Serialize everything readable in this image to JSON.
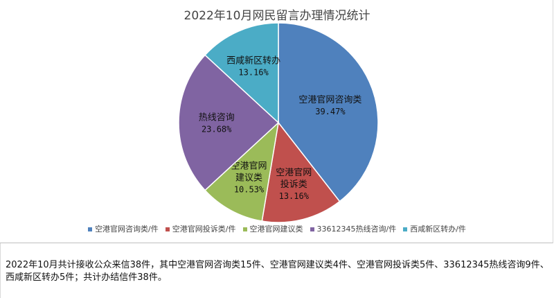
{
  "chart_data": {
    "type": "pie",
    "title": "2022年10月网民留言办理情况统计",
    "slices": [
      {
        "legend": "空港官网咨询类/件",
        "label_lines": [
          "空港官网咨询类"
        ],
        "percent_label": "39.47%",
        "value": 15,
        "color": "#4f81bd"
      },
      {
        "legend": "空港官网投诉类/件",
        "label_lines": [
          "空港官网",
          "投诉类"
        ],
        "percent_label": "13.16%",
        "value": 5,
        "color": "#c0504d"
      },
      {
        "legend": "空港官网建议类",
        "label_lines": [
          "空港官网",
          "建议类"
        ],
        "percent_label": "10.53%",
        "value": 4,
        "color": "#9bbb59"
      },
      {
        "legend": "33612345热线咨询/件",
        "label_lines": [
          "热线咨询"
        ],
        "percent_label": "23.68%",
        "value": 9,
        "color": "#8064a2"
      },
      {
        "legend": "西咸新区转办/件",
        "label_lines": [
          "西咸新区转办"
        ],
        "percent_label": "13.16%",
        "value": 5,
        "color": "#4bacc6"
      }
    ],
    "legend_position": "bottom"
  },
  "summary": "2022年10月共计接收公众来信38件，其中空港官网咨询类15件、空港官网建议类4件、空港官网投诉类5件、33612345热线咨询9件、西咸新区转办5件；共计办结信件38件。"
}
